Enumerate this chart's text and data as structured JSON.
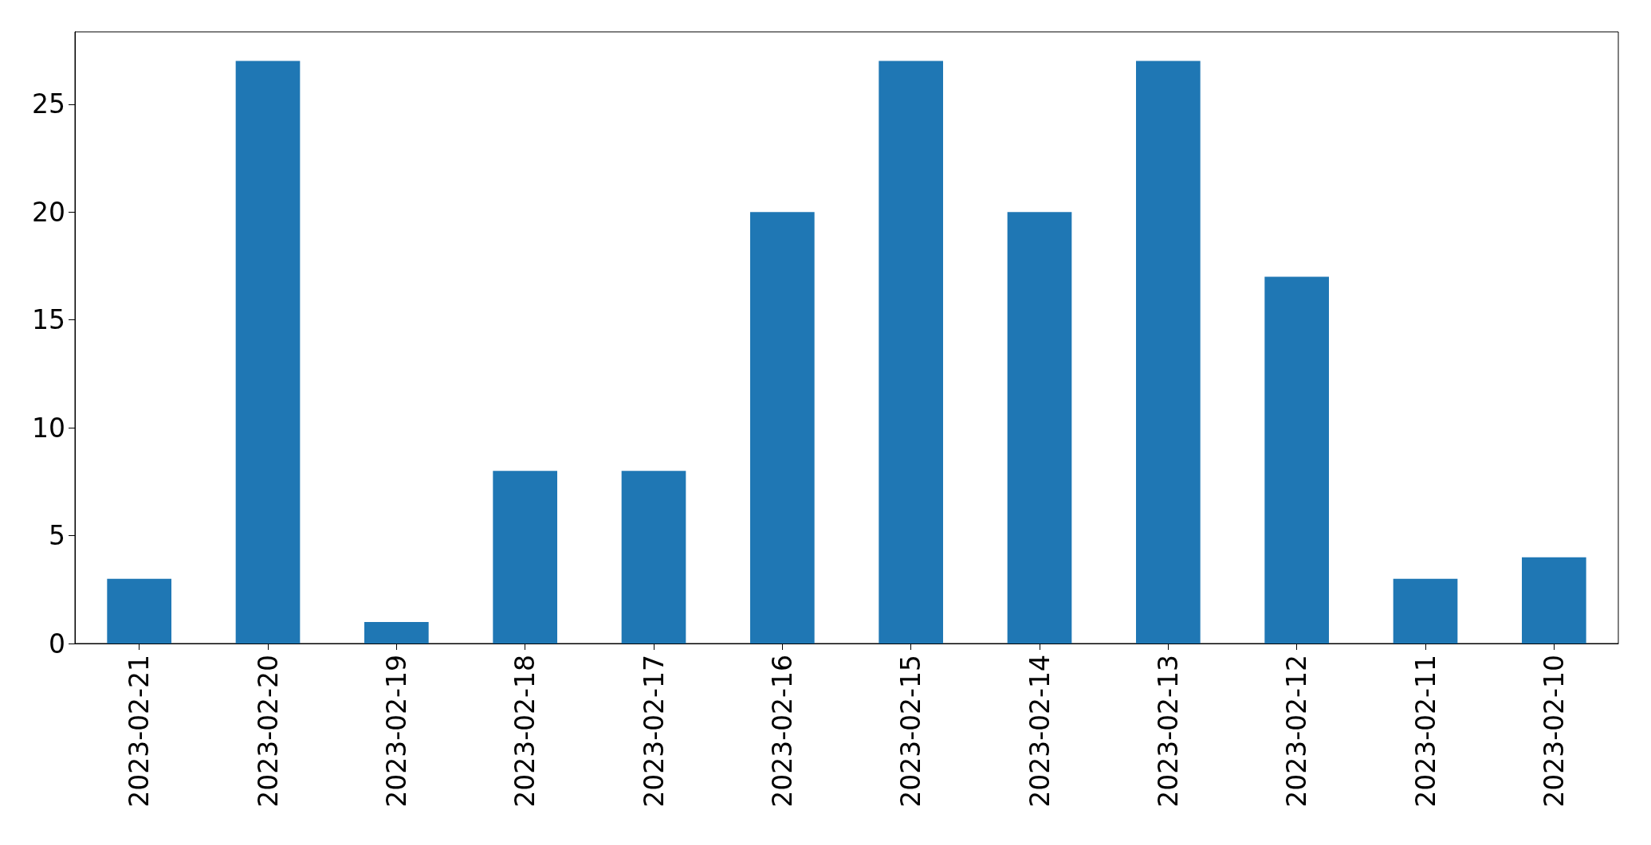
{
  "chart_data": {
    "type": "bar",
    "categories": [
      "2023-02-21",
      "2023-02-20",
      "2023-02-19",
      "2023-02-18",
      "2023-02-17",
      "2023-02-16",
      "2023-02-15",
      "2023-02-14",
      "2023-02-13",
      "2023-02-12",
      "2023-02-11",
      "2023-02-10"
    ],
    "values": [
      3,
      27,
      1,
      8,
      8,
      20,
      27,
      20,
      27,
      17,
      3,
      4
    ],
    "color": "#1f77b4",
    "ylim": [
      0,
      28.35
    ],
    "yticks": [
      0,
      5,
      10,
      15,
      20,
      25
    ],
    "grid": false
  }
}
